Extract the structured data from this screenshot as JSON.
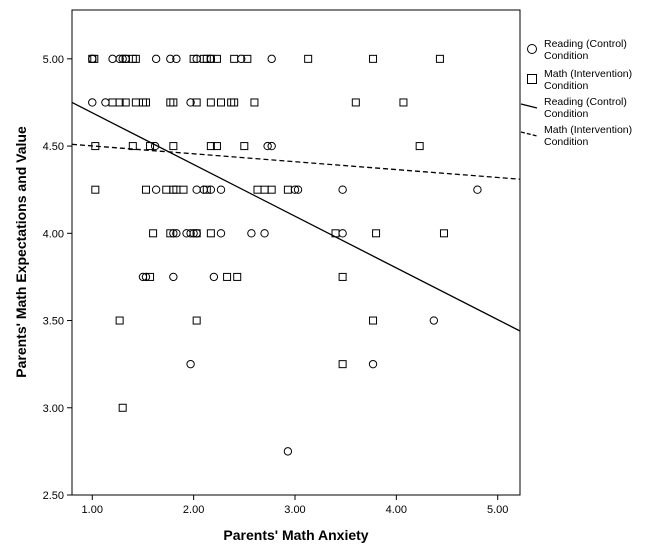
{
  "chart_data": {
    "type": "scatter",
    "xlabel": "Parents' Math Anxiety",
    "ylabel": "Parents' Math Expectations and Value",
    "xlim": [
      0.8,
      5.22
    ],
    "ylim": [
      2.5,
      5.28
    ],
    "x_ticks": [
      1.0,
      2.0,
      3.0,
      4.0,
      5.0
    ],
    "x_tick_labels": [
      "1.00",
      "2.00",
      "3.00",
      "4.00",
      "5.00"
    ],
    "y_ticks": [
      2.5,
      3.0,
      3.5,
      4.0,
      4.5,
      5.0
    ],
    "y_tick_labels": [
      "2.50",
      "3.00",
      "3.50",
      "4.00",
      "4.50",
      "5.00"
    ],
    "grid": false,
    "legend_position": "right",
    "series": [
      {
        "name": "Reading (Control) Condition",
        "marker": "circle",
        "points": [
          [
            1.0,
            5.0
          ],
          [
            1.2,
            5.0
          ],
          [
            1.27,
            5.0
          ],
          [
            1.3,
            5.0
          ],
          [
            1.33,
            5.0
          ],
          [
            1.63,
            5.0
          ],
          [
            1.77,
            5.0
          ],
          [
            1.83,
            5.0
          ],
          [
            2.03,
            5.0
          ],
          [
            2.17,
            5.0
          ],
          [
            2.47,
            5.0
          ],
          [
            2.77,
            5.0
          ],
          [
            1.0,
            4.75
          ],
          [
            1.13,
            4.75
          ],
          [
            1.97,
            4.75
          ],
          [
            1.62,
            4.5
          ],
          [
            2.73,
            4.5
          ],
          [
            2.77,
            4.5
          ],
          [
            1.63,
            4.25
          ],
          [
            2.03,
            4.25
          ],
          [
            2.1,
            4.25
          ],
          [
            2.17,
            4.25
          ],
          [
            2.27,
            4.25
          ],
          [
            3.0,
            4.25
          ],
          [
            3.03,
            4.25
          ],
          [
            3.47,
            4.25
          ],
          [
            4.8,
            4.25
          ],
          [
            1.8,
            4.0
          ],
          [
            1.83,
            4.0
          ],
          [
            1.93,
            4.0
          ],
          [
            1.97,
            4.0
          ],
          [
            2.0,
            4.0
          ],
          [
            2.03,
            4.0
          ],
          [
            2.27,
            4.0
          ],
          [
            2.57,
            4.0
          ],
          [
            2.7,
            4.0
          ],
          [
            3.47,
            4.0
          ],
          [
            1.5,
            3.75
          ],
          [
            1.53,
            3.75
          ],
          [
            1.8,
            3.75
          ],
          [
            2.2,
            3.75
          ],
          [
            4.37,
            3.5
          ],
          [
            1.97,
            3.25
          ],
          [
            3.77,
            3.25
          ],
          [
            2.93,
            2.75
          ]
        ]
      },
      {
        "name": "Math (Intervention) Condition",
        "marker": "square",
        "points": [
          [
            1.0,
            5.0
          ],
          [
            1.02,
            5.0
          ],
          [
            1.33,
            5.0
          ],
          [
            1.4,
            5.0
          ],
          [
            1.43,
            5.0
          ],
          [
            2.0,
            5.0
          ],
          [
            2.1,
            5.0
          ],
          [
            2.13,
            5.0
          ],
          [
            2.17,
            5.0
          ],
          [
            2.23,
            5.0
          ],
          [
            2.4,
            5.0
          ],
          [
            2.53,
            5.0
          ],
          [
            3.13,
            5.0
          ],
          [
            3.77,
            5.0
          ],
          [
            4.43,
            5.0
          ],
          [
            1.2,
            4.75
          ],
          [
            1.27,
            4.75
          ],
          [
            1.33,
            4.75
          ],
          [
            1.43,
            4.75
          ],
          [
            1.5,
            4.75
          ],
          [
            1.53,
            4.75
          ],
          [
            1.77,
            4.75
          ],
          [
            1.8,
            4.75
          ],
          [
            2.03,
            4.75
          ],
          [
            2.17,
            4.75
          ],
          [
            2.27,
            4.75
          ],
          [
            2.37,
            4.75
          ],
          [
            2.4,
            4.75
          ],
          [
            2.6,
            4.75
          ],
          [
            3.6,
            4.75
          ],
          [
            4.07,
            4.75
          ],
          [
            1.03,
            4.5
          ],
          [
            1.4,
            4.5
          ],
          [
            1.57,
            4.5
          ],
          [
            1.8,
            4.5
          ],
          [
            2.17,
            4.5
          ],
          [
            2.23,
            4.5
          ],
          [
            2.5,
            4.5
          ],
          [
            4.23,
            4.5
          ],
          [
            1.03,
            4.25
          ],
          [
            1.53,
            4.25
          ],
          [
            1.73,
            4.25
          ],
          [
            1.8,
            4.25
          ],
          [
            1.83,
            4.25
          ],
          [
            1.9,
            4.25
          ],
          [
            2.13,
            4.25
          ],
          [
            2.63,
            4.25
          ],
          [
            2.7,
            4.25
          ],
          [
            2.77,
            4.25
          ],
          [
            2.93,
            4.25
          ],
          [
            1.6,
            4.0
          ],
          [
            1.77,
            4.0
          ],
          [
            2.03,
            4.0
          ],
          [
            2.17,
            4.0
          ],
          [
            3.4,
            4.0
          ],
          [
            3.8,
            4.0
          ],
          [
            4.47,
            4.0
          ],
          [
            1.57,
            3.75
          ],
          [
            2.33,
            3.75
          ],
          [
            2.43,
            3.75
          ],
          [
            3.47,
            3.75
          ],
          [
            1.27,
            3.5
          ],
          [
            2.03,
            3.5
          ],
          [
            3.77,
            3.5
          ],
          [
            3.47,
            3.25
          ],
          [
            1.3,
            3.0
          ]
        ]
      }
    ],
    "fit_lines": [
      {
        "name": "Reading (Control) Condition",
        "style": "solid",
        "x": [
          0.8,
          5.22
        ],
        "y": [
          4.75,
          3.44
        ]
      },
      {
        "name": "Math (Intervention) Condition",
        "style": "dashed",
        "x": [
          0.8,
          5.22
        ],
        "y": [
          4.51,
          4.31
        ]
      }
    ],
    "legend": [
      {
        "label_lines": [
          "Reading (Control)",
          "Condition"
        ],
        "kind": "circle"
      },
      {
        "label_lines": [
          "Math (Intervention)",
          "Condition"
        ],
        "kind": "square"
      },
      {
        "label_lines": [
          "Reading (Control)",
          "Condition"
        ],
        "kind": "solid-line"
      },
      {
        "label_lines": [
          "Math (Intervention)",
          "Condition"
        ],
        "kind": "dashed-line"
      }
    ]
  }
}
